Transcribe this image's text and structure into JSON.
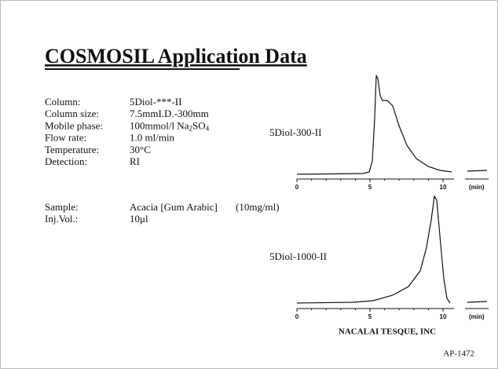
{
  "title": "COSMOSIL Application Data",
  "conditions": [
    {
      "label": "Column:",
      "value": [
        "5Diol-***-II"
      ]
    },
    {
      "label": "Column size:",
      "value": [
        "7.5mmI.D.-300mm"
      ]
    },
    {
      "label": "Mobile phase:",
      "value": [
        "100mmol/l Na",
        "2",
        "SO",
        "4"
      ]
    },
    {
      "label": "Flow rate:",
      "value": [
        "1.0 ml/min"
      ]
    },
    {
      "label": "Temperature:",
      "value": [
        "30°C"
      ]
    },
    {
      "label": "Detection:",
      "value": [
        "RI"
      ]
    }
  ],
  "sample": {
    "label": "Sample:",
    "value": "Acacia [Gum Arabic]",
    "concentration": "(10mg/ml)"
  },
  "injection": {
    "label": "Inj.Vol.:",
    "value": "10μl"
  },
  "chromatograms": [
    {
      "label": "5Diol-300-II",
      "xticks": [
        0,
        5,
        10
      ],
      "unit": "(min)"
    },
    {
      "label": "5Diol-1000-II",
      "xticks": [
        0,
        5,
        10
      ],
      "unit": "(min)"
    }
  ],
  "footer": "NACALAI TESQUE, INC",
  "code": "AP-1472"
}
